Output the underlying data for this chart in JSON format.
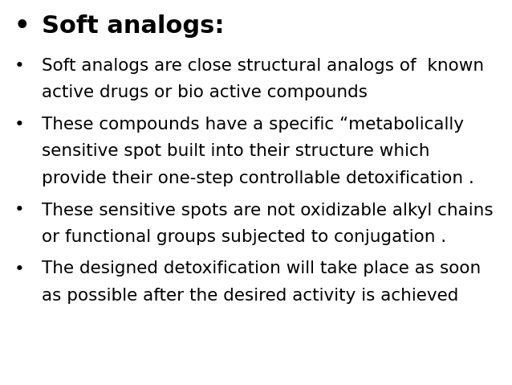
{
  "background_color": "#ffffff",
  "title": "Soft analogs:",
  "title_fontsize": 22,
  "bullet_color": "#000000",
  "bullet_char": "•",
  "title_bullet_fontsize": 24,
  "bullets": [
    {
      "lines": [
        "Soft analogs are close structural analogs of  known",
        "active drugs or bio active compounds"
      ],
      "fontsize": 15.5
    },
    {
      "lines": [
        "These compounds have a specific “metabolically",
        "sensitive spot built into their structure which",
        "provide their one-step controllable detoxification ."
      ],
      "fontsize": 15.5
    },
    {
      "lines": [
        "These sensitive spots are not oxidizable alkyl chains",
        "or functional groups subjected to conjugation ."
      ],
      "fontsize": 15.5
    },
    {
      "lines": [
        "The designed detoxification will take place as soon",
        "as possible after the desired activity is achieved"
      ],
      "fontsize": 15.5
    }
  ],
  "fig_width": 6.38,
  "fig_height": 4.79,
  "dpi": 100
}
